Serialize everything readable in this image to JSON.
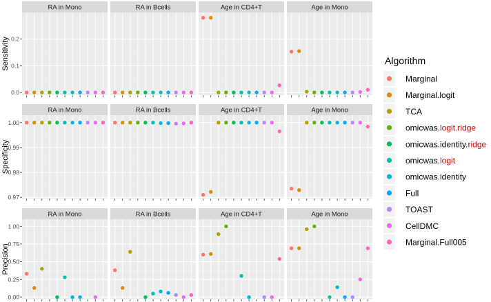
{
  "chart_data": {
    "type": "scatter",
    "algorithms": [
      {
        "name": "Marginal",
        "parts": [
          {
            "text": "Marginal",
            "color": "#000000"
          }
        ],
        "color": "#F8766D"
      },
      {
        "name": "Marginal.logit",
        "parts": [
          {
            "text": "Marginal.logit",
            "color": "#000000"
          }
        ],
        "color": "#DB8E00"
      },
      {
        "name": "TCA",
        "parts": [
          {
            "text": "TCA",
            "color": "#000000"
          }
        ],
        "color": "#AEA200"
      },
      {
        "name": "omicwas.logit.ridge",
        "parts": [
          {
            "text": "omicwas.",
            "color": "#000000"
          },
          {
            "text": "logit.ridge",
            "color": "#D00000"
          }
        ],
        "color": "#64B200"
      },
      {
        "name": "omicwas.identity.ridge",
        "parts": [
          {
            "text": "omicwas.identity.",
            "color": "#000000"
          },
          {
            "text": "ridge",
            "color": "#D00000"
          }
        ],
        "color": "#00BD5C"
      },
      {
        "name": "omicwas.logit",
        "parts": [
          {
            "text": "omicwas.",
            "color": "#000000"
          },
          {
            "text": "logit",
            "color": "#D00000"
          }
        ],
        "color": "#00C1A7"
      },
      {
        "name": "omicwas.identity",
        "parts": [
          {
            "text": "omicwas.identity",
            "color": "#000000"
          }
        ],
        "color": "#00BADE"
      },
      {
        "name": "Full",
        "parts": [
          {
            "text": "Full",
            "color": "#000000"
          }
        ],
        "color": "#00A6FF"
      },
      {
        "name": "TOAST",
        "parts": [
          {
            "text": "TOAST",
            "color": "#000000"
          }
        ],
        "color": "#B385FF"
      },
      {
        "name": "CellDMC",
        "parts": [
          {
            "text": "CellDMC",
            "color": "#000000"
          }
        ],
        "color": "#EF67EB"
      },
      {
        "name": "Marginal.Full005",
        "parts": [
          {
            "text": "Marginal.Full005",
            "color": "#000000"
          }
        ],
        "color": "#FF63B6"
      }
    ],
    "legend_title": "Algorithm",
    "legend_position": "right",
    "facet_columns": [
      "RA in Mono",
      "RA in Bcells",
      "Age in CD4+T",
      "Age in Mono"
    ],
    "rows": [
      {
        "metric": "Sensitivity",
        "ylim": [
          -0.01,
          0.3
        ],
        "yticks": [
          0.0,
          0.1,
          0.2
        ],
        "ytick_labels": [
          "0.0",
          "0.1",
          "0.2"
        ],
        "values": [
          [
            0,
            0,
            0,
            0,
            0,
            0,
            0,
            0,
            0,
            0,
            0
          ],
          [
            0,
            0,
            0,
            0,
            0,
            0,
            0,
            0,
            0,
            0,
            0
          ],
          [
            0.28,
            0.28,
            0,
            0,
            0,
            0,
            0,
            0,
            0,
            0,
            0.027
          ],
          [
            0.153,
            0.155,
            0.003,
            0,
            0,
            0,
            0,
            0,
            0,
            0.002,
            0.01
          ]
        ]
      },
      {
        "metric": "Specificity",
        "ylim": [
          0.9695,
          1.003
        ],
        "yticks": [
          0.97,
          0.98,
          0.99,
          1.0
        ],
        "ytick_labels": [
          "0.97",
          "0.98",
          "0.99",
          "1.00"
        ],
        "values": [
          [
            1,
            1,
            1,
            1,
            1,
            1,
            1,
            1,
            1,
            1,
            1
          ],
          [
            1,
            1,
            1,
            1,
            1,
            1,
            0.9998,
            0.9998,
            0.9996,
            0.9997,
            1
          ],
          [
            0.971,
            0.9722,
            1,
            1,
            1,
            1,
            1,
            1,
            1,
            1,
            0.9965
          ],
          [
            0.9735,
            0.9729,
            1,
            1,
            1,
            1,
            1,
            1,
            1,
            1,
            0.9984
          ]
        ]
      },
      {
        "metric": "Precision",
        "ylim": [
          -0.03,
          1.1
        ],
        "yticks": [
          0.0,
          0.25,
          0.5,
          0.75,
          1.0
        ],
        "ytick_labels": [
          "0.00",
          "0.25",
          "0.50",
          "0.75",
          "1.00"
        ],
        "values": [
          [
            0.33,
            0.13,
            0.4,
            null,
            0,
            0.28,
            0,
            0,
            null,
            0,
            null
          ],
          [
            0.38,
            0.13,
            0.64,
            null,
            0,
            0.05,
            0.08,
            0.06,
            0.03,
            0,
            0.03
          ],
          [
            0.6,
            0.61,
            0.89,
            1.0,
            null,
            0.3,
            0,
            null,
            0,
            0,
            0.54
          ],
          [
            0.69,
            0.69,
            0.96,
            1.0,
            null,
            0,
            0.14,
            0,
            0,
            0.25,
            0.69
          ]
        ]
      }
    ]
  }
}
